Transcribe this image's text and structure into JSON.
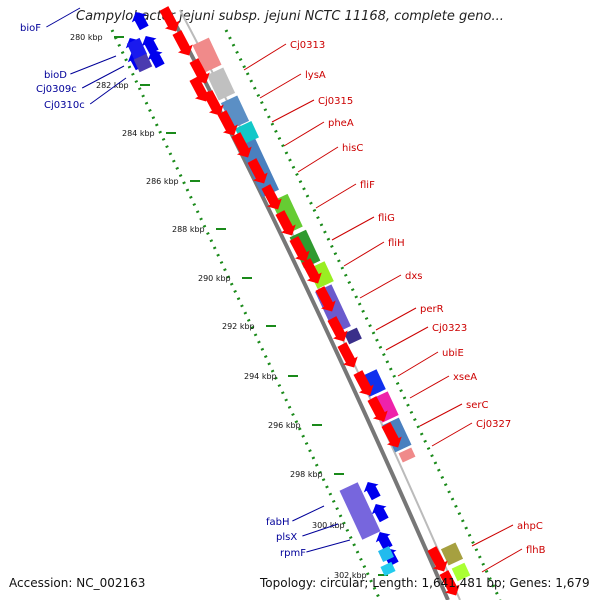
{
  "header": {
    "title": "Campylobacter jejuni subsp. jejuni NCTC 11168, complete geno..."
  },
  "footer": {
    "accession": "Accession: NC_002163",
    "topology": "Topology: circular; Length: 1,641,481 bp; Genes: 1,679"
  },
  "scale_labels": [
    "280 kbp",
    "282 kbp",
    "284 kbp",
    "286 kbp",
    "288 kbp",
    "290 kbp",
    "292 kbp",
    "294 kbp",
    "296 kbp",
    "298 kbp",
    "300 kbp",
    "302 kbp"
  ],
  "gene_labels_right": [
    "Cj0313",
    "lysA",
    "Cj0315",
    "pheA",
    "hisC",
    "fliF",
    "fliG",
    "fliH",
    "dxs",
    "perR",
    "Cj0323",
    "ubiE",
    "xseA",
    "serC",
    "Cj0327",
    "ahpC",
    "flhB"
  ],
  "gene_labels_left": [
    "bioF",
    "bioD",
    "Cj0309c",
    "Cj0310c",
    "fabH",
    "plsX",
    "rpmF"
  ],
  "colors": {
    "forward_cds": "#ff0000",
    "reverse_cds": "#0000ee",
    "label_right": "#cc0000",
    "label_left": "#000099",
    "backbone": "#888888",
    "tick": "#1a8a1a"
  }
}
